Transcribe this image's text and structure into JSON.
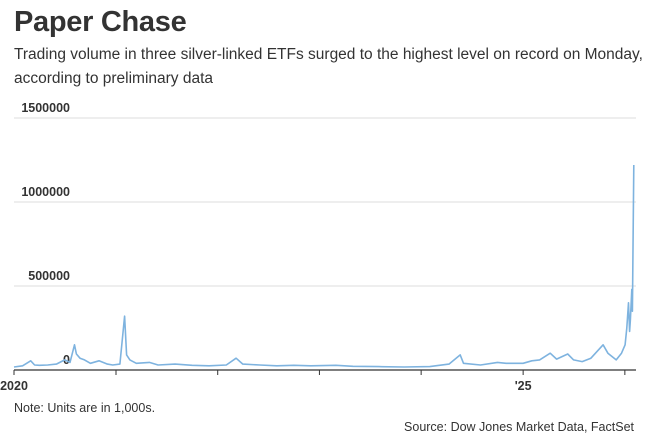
{
  "header": {
    "title": "Paper Chase",
    "subtitle": "Trading volume in three silver-linked ETFs surged to the highest level on record on Monday, according to preliminary data"
  },
  "footer": {
    "note": "Note: Units are in 1,000s.",
    "source": "Source: Dow Jones Market Data, FactSet"
  },
  "colors": {
    "line": "#7eb3df",
    "grid": "#dddddd",
    "axis": "#333333"
  },
  "chart_data": {
    "type": "line",
    "title": "Paper Chase",
    "ylim": [
      0,
      1500000
    ],
    "yticks": [
      0,
      500000,
      1000000,
      1500000
    ],
    "ytick_labels": [
      "0",
      "500000",
      "1000000",
      "1500000"
    ],
    "xlim": [
      "2020-01-01",
      "2026-02-10"
    ],
    "xticks": [
      {
        "x": "2020-01-01",
        "label": "2020"
      },
      {
        "x": "2021-01-01",
        "label": ""
      },
      {
        "x": "2022-01-01",
        "label": ""
      },
      {
        "x": "2023-01-01",
        "label": ""
      },
      {
        "x": "2024-01-01",
        "label": ""
      },
      {
        "x": "2025-01-01",
        "label": "'25"
      },
      {
        "x": "2026-01-01",
        "label": ""
      }
    ],
    "grid": true,
    "series": [
      {
        "points": [
          [
            "2020-01-01",
            18000
          ],
          [
            "2020-02-01",
            25000
          ],
          [
            "2020-03-01",
            55000
          ],
          [
            "2020-03-15",
            30000
          ],
          [
            "2020-04-01",
            28000
          ],
          [
            "2020-05-01",
            30000
          ],
          [
            "2020-06-01",
            35000
          ],
          [
            "2020-07-01",
            60000
          ],
          [
            "2020-07-20",
            45000
          ],
          [
            "2020-08-05",
            150000
          ],
          [
            "2020-08-12",
            95000
          ],
          [
            "2020-08-25",
            70000
          ],
          [
            "2020-09-10",
            60000
          ],
          [
            "2020-10-01",
            40000
          ],
          [
            "2020-11-01",
            55000
          ],
          [
            "2020-12-01",
            35000
          ],
          [
            "2020-12-20",
            30000
          ],
          [
            "2021-01-15",
            35000
          ],
          [
            "2021-02-01",
            320000
          ],
          [
            "2021-02-08",
            90000
          ],
          [
            "2021-02-20",
            60000
          ],
          [
            "2021-03-15",
            40000
          ],
          [
            "2021-05-01",
            45000
          ],
          [
            "2021-06-01",
            30000
          ],
          [
            "2021-08-01",
            35000
          ],
          [
            "2021-10-01",
            28000
          ],
          [
            "2021-12-01",
            25000
          ],
          [
            "2022-02-01",
            30000
          ],
          [
            "2022-03-08",
            70000
          ],
          [
            "2022-04-01",
            35000
          ],
          [
            "2022-06-01",
            30000
          ],
          [
            "2022-08-01",
            25000
          ],
          [
            "2022-10-01",
            28000
          ],
          [
            "2022-12-01",
            25000
          ],
          [
            "2023-03-01",
            28000
          ],
          [
            "2023-05-01",
            22000
          ],
          [
            "2023-08-01",
            20000
          ],
          [
            "2023-11-01",
            18000
          ],
          [
            "2024-02-01",
            20000
          ],
          [
            "2024-04-10",
            35000
          ],
          [
            "2024-05-20",
            90000
          ],
          [
            "2024-06-01",
            40000
          ],
          [
            "2024-08-01",
            30000
          ],
          [
            "2024-10-01",
            45000
          ],
          [
            "2024-11-01",
            40000
          ],
          [
            "2025-01-01",
            40000
          ],
          [
            "2025-02-01",
            55000
          ],
          [
            "2025-03-01",
            60000
          ],
          [
            "2025-04-08",
            100000
          ],
          [
            "2025-05-01",
            65000
          ],
          [
            "2025-06-10",
            95000
          ],
          [
            "2025-07-01",
            60000
          ],
          [
            "2025-08-01",
            50000
          ],
          [
            "2025-09-01",
            70000
          ],
          [
            "2025-10-15",
            150000
          ],
          [
            "2025-11-01",
            100000
          ],
          [
            "2025-12-01",
            60000
          ],
          [
            "2025-12-20",
            100000
          ],
          [
            "2026-01-02",
            150000
          ],
          [
            "2026-01-08",
            250000
          ],
          [
            "2026-01-14",
            400000
          ],
          [
            "2026-01-18",
            230000
          ],
          [
            "2026-01-21",
            300000
          ],
          [
            "2026-01-26",
            480000
          ],
          [
            "2026-01-28",
            350000
          ],
          [
            "2026-02-02",
            1220000
          ]
        ]
      }
    ]
  }
}
